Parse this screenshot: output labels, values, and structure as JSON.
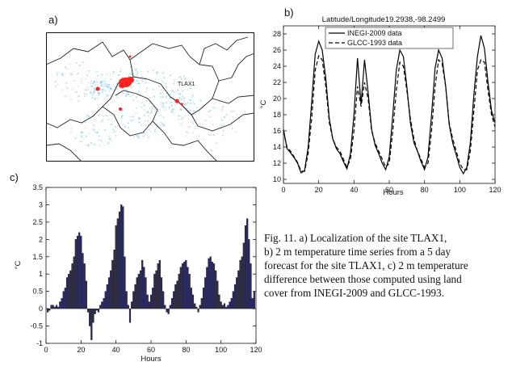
{
  "panels": {
    "a": "a)",
    "b": "b)",
    "c": "c)"
  },
  "map": {
    "site_label": "TLAX1",
    "colors": {
      "border": "#222222",
      "urban": "#ff2020",
      "veg": "#5db8e6"
    }
  },
  "caption": {
    "lines": [
      "Fig. 11. a) Localization of the site TLAX1,",
      "b) 2 m temperature time series from a 5 day",
      "forecast for the site TLAX1, c) 2 m temperature",
      "difference between those computed using land",
      "cover from INEGI-2009 and GLCC-1993."
    ]
  },
  "chart_data": [
    {
      "type": "line",
      "title": "Latitude/Longitude19.2938,-98.2499",
      "xlabel": "Hours",
      "ylabel": "°C",
      "xlim": [
        0,
        120
      ],
      "ylim": [
        9.5,
        29
      ],
      "xticks": [
        0,
        20,
        40,
        60,
        80,
        100,
        120
      ],
      "yticks": [
        10,
        12,
        14,
        16,
        18,
        20,
        22,
        24,
        26,
        28
      ],
      "legend": "top-right",
      "series": [
        {
          "name": "INEGI-2009 data",
          "style": "solid",
          "points": [
            [
              0,
              16.2
            ],
            [
              2,
              13.8
            ],
            [
              4,
              13.3
            ],
            [
              6,
              12.7
            ],
            [
              8,
              12.0
            ],
            [
              10,
              10.8
            ],
            [
              12,
              11.1
            ],
            [
              14,
              14.0
            ],
            [
              16,
              19.5
            ],
            [
              18,
              25.5
            ],
            [
              20,
              27.1
            ],
            [
              22,
              26.0
            ],
            [
              24,
              22.5
            ],
            [
              26,
              17.5
            ],
            [
              28,
              15.0
            ],
            [
              30,
              13.8
            ],
            [
              32,
              13.2
            ],
            [
              34,
              12.2
            ],
            [
              36,
              11.3
            ],
            [
              38,
              13.2
            ],
            [
              40,
              18.0
            ],
            [
              42,
              25.0
            ],
            [
              44,
              19.3
            ],
            [
              46,
              24.8
            ],
            [
              48,
              20.8
            ],
            [
              50,
              16.2
            ],
            [
              52,
              14.2
            ],
            [
              54,
              13.2
            ],
            [
              56,
              12.0
            ],
            [
              58,
              11.2
            ],
            [
              60,
              12.8
            ],
            [
              62,
              18.0
            ],
            [
              64,
              23.5
            ],
            [
              66,
              26.0
            ],
            [
              68,
              25.2
            ],
            [
              70,
              21.5
            ],
            [
              72,
              17.0
            ],
            [
              74,
              14.5
            ],
            [
              76,
              13.5
            ],
            [
              78,
              12.2
            ],
            [
              80,
              11.2
            ],
            [
              82,
              12.8
            ],
            [
              84,
              18.0
            ],
            [
              86,
              23.8
            ],
            [
              88,
              26.0
            ],
            [
              90,
              25.0
            ],
            [
              92,
              21.5
            ],
            [
              94,
              16.8
            ],
            [
              96,
              14.5
            ],
            [
              98,
              13.0
            ],
            [
              100,
              11.5
            ],
            [
              102,
              10.7
            ],
            [
              104,
              11.5
            ],
            [
              106,
              14.5
            ],
            [
              108,
              20.5
            ],
            [
              110,
              25.2
            ],
            [
              112,
              27.8
            ],
            [
              114,
              26.2
            ],
            [
              116,
              22.0
            ],
            [
              118,
              18.5
            ],
            [
              120,
              17.0
            ]
          ]
        },
        {
          "name": "GLCC-1993 data",
          "style": "dashed",
          "points": [
            [
              0,
              16.0
            ],
            [
              2,
              14.0
            ],
            [
              4,
              13.5
            ],
            [
              6,
              12.8
            ],
            [
              8,
              12.1
            ],
            [
              10,
              11.0
            ],
            [
              12,
              11.0
            ],
            [
              14,
              13.2
            ],
            [
              16,
              17.5
            ],
            [
              18,
              23.5
            ],
            [
              20,
              25.3
            ],
            [
              22,
              24.8
            ],
            [
              24,
              21.5
            ],
            [
              26,
              17.0
            ],
            [
              28,
              15.0
            ],
            [
              30,
              14.0
            ],
            [
              32,
              13.5
            ],
            [
              34,
              12.5
            ],
            [
              36,
              11.5
            ],
            [
              38,
              12.5
            ],
            [
              40,
              16.0
            ],
            [
              42,
              21.5
            ],
            [
              44,
              19.0
            ],
            [
              46,
              22.0
            ],
            [
              48,
              20.0
            ],
            [
              50,
              16.0
            ],
            [
              52,
              14.5
            ],
            [
              54,
              13.5
            ],
            [
              56,
              12.5
            ],
            [
              58,
              11.5
            ],
            [
              60,
              12.0
            ],
            [
              62,
              16.0
            ],
            [
              64,
              21.0
            ],
            [
              66,
              24.5
            ],
            [
              68,
              24.0
            ],
            [
              70,
              21.0
            ],
            [
              72,
              17.5
            ],
            [
              74,
              15.0
            ],
            [
              76,
              13.5
            ],
            [
              78,
              12.5
            ],
            [
              80,
              11.5
            ],
            [
              82,
              12.0
            ],
            [
              84,
              16.0
            ],
            [
              86,
              21.5
            ],
            [
              88,
              24.8
            ],
            [
              90,
              24.3
            ],
            [
              92,
              21.5
            ],
            [
              94,
              17.0
            ],
            [
              96,
              15.0
            ],
            [
              98,
              13.5
            ],
            [
              100,
              12.0
            ],
            [
              102,
              11.2
            ],
            [
              104,
              11.2
            ],
            [
              106,
              13.5
            ],
            [
              108,
              18.5
            ],
            [
              110,
              23.5
            ],
            [
              112,
              24.8
            ],
            [
              114,
              24.5
            ],
            [
              116,
              21.0
            ],
            [
              118,
              18.0
            ],
            [
              120,
              16.5
            ]
          ]
        }
      ]
    },
    {
      "type": "bar",
      "title": "",
      "xlabel": "Hours",
      "ylabel": "°C",
      "xlim": [
        0,
        120
      ],
      "ylim": [
        -1,
        3.5
      ],
      "xticks": [
        0,
        20,
        40,
        60,
        80,
        100,
        120
      ],
      "yticks": [
        -1,
        -0.5,
        0,
        0.5,
        1,
        1.5,
        2,
        2.5,
        3,
        3.5
      ],
      "bar_color": "#2a2a60",
      "x": [
        1,
        2,
        3,
        4,
        5,
        6,
        7,
        8,
        9,
        10,
        11,
        12,
        13,
        14,
        15,
        16,
        17,
        18,
        19,
        20,
        21,
        22,
        23,
        24,
        25,
        26,
        27,
        28,
        29,
        30,
        31,
        32,
        33,
        34,
        35,
        36,
        37,
        38,
        39,
        40,
        41,
        42,
        43,
        44,
        45,
        46,
        47,
        48,
        49,
        50,
        51,
        52,
        53,
        54,
        55,
        56,
        57,
        58,
        59,
        60,
        61,
        62,
        63,
        64,
        65,
        66,
        67,
        68,
        69,
        70,
        71,
        72,
        73,
        74,
        75,
        76,
        77,
        78,
        79,
        80,
        81,
        82,
        83,
        84,
        85,
        86,
        87,
        88,
        89,
        90,
        91,
        92,
        93,
        94,
        95,
        96,
        97,
        98,
        99,
        100,
        101,
        102,
        103,
        104,
        105,
        106,
        107,
        108,
        109,
        110,
        111,
        112,
        113,
        114,
        115,
        116,
        117,
        118,
        119
      ],
      "values": [
        -0.1,
        -0.05,
        0.1,
        0.1,
        0.05,
        0.1,
        0.05,
        0.2,
        0.3,
        0.5,
        0.6,
        0.9,
        1.0,
        1.1,
        1.3,
        1.5,
        2.0,
        2.1,
        2.2,
        2.1,
        1.6,
        1.3,
        0.8,
        -0.1,
        -0.5,
        -0.9,
        -0.4,
        -0.15,
        -0.05,
        -0.1,
        0.1,
        0.2,
        0.3,
        0.5,
        0.7,
        0.9,
        1.1,
        1.4,
        1.7,
        2.4,
        2.6,
        2.8,
        3.0,
        2.95,
        1.5,
        0.5,
        0.1,
        -0.4,
        0.2,
        0.5,
        0.7,
        0.9,
        1.0,
        1.1,
        1.4,
        1.2,
        0.9,
        0.4,
        0.2,
        0.4,
        0.6,
        1.0,
        1.1,
        1.3,
        1.4,
        0.9,
        0.5,
        0.1,
        -0.1,
        -0.15,
        0.1,
        0.3,
        0.5,
        0.7,
        0.8,
        1.0,
        1.2,
        1.3,
        1.35,
        1.4,
        1.2,
        1.0,
        0.6,
        0.4,
        0.15,
        0.05,
        -0.1,
        0.1,
        0.3,
        0.6,
        0.9,
        1.2,
        1.45,
        1.5,
        1.35,
        1.3,
        1.1,
        0.8,
        0.4,
        0.2,
        0.1,
        0.15,
        0.05,
        0.1,
        0.2,
        0.3,
        0.5,
        0.7,
        0.9,
        1.1,
        1.4,
        1.5,
        1.9,
        2.4,
        2.6,
        2.0,
        1.3,
        0.3,
        0.5
      ]
    }
  ]
}
